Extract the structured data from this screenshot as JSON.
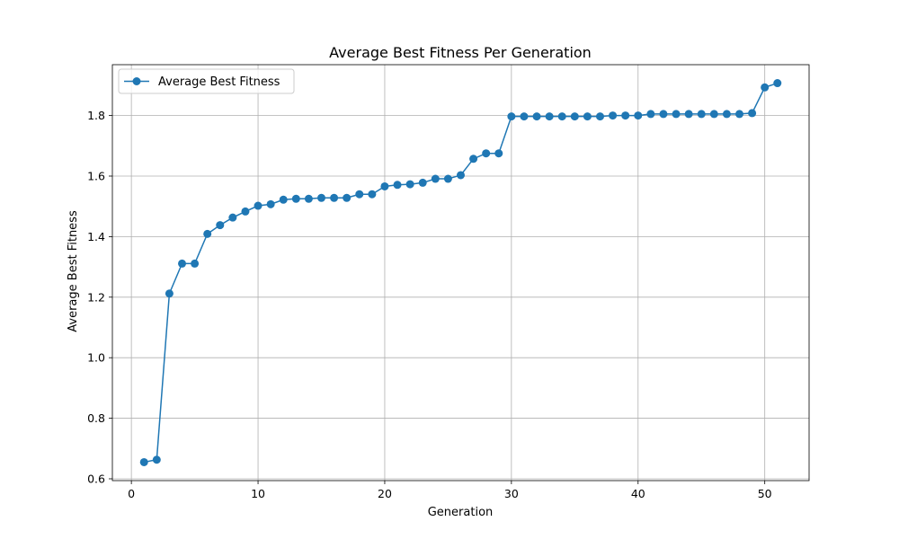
{
  "chart_data": {
    "type": "line",
    "title": "Average Best Fitness Per Generation",
    "xlabel": "Generation",
    "ylabel": "Average Best Fitness",
    "xlim": [
      -1.5,
      53.5
    ],
    "ylim": [
      0.594,
      1.968
    ],
    "xticks": [
      0,
      10,
      20,
      30,
      40,
      50
    ],
    "yticks": [
      0.6,
      0.8,
      1.0,
      1.2,
      1.4,
      1.6,
      1.8
    ],
    "ytick_labels": [
      "0.6",
      "0.8",
      "1.0",
      "1.2",
      "1.4",
      "1.6",
      "1.8"
    ],
    "grid": true,
    "legend_position": "upper-left",
    "color": "#1f77b4",
    "grid_color": "#b0b0b0",
    "series": [
      {
        "name": "Average Best Fitness",
        "marker": "circle",
        "x": [
          1,
          2,
          3,
          4,
          5,
          6,
          7,
          8,
          9,
          10,
          11,
          12,
          13,
          14,
          15,
          16,
          17,
          18,
          19,
          20,
          21,
          22,
          23,
          24,
          25,
          26,
          27,
          28,
          29,
          30,
          31,
          32,
          33,
          34,
          35,
          36,
          37,
          38,
          39,
          40,
          41,
          42,
          43,
          44,
          45,
          46,
          47,
          48,
          49,
          50,
          51
        ],
        "y": [
          0.655,
          0.663,
          1.212,
          1.311,
          1.311,
          1.409,
          1.438,
          1.463,
          1.483,
          1.502,
          1.507,
          1.522,
          1.525,
          1.525,
          1.528,
          1.528,
          1.528,
          1.54,
          1.54,
          1.566,
          1.571,
          1.573,
          1.578,
          1.591,
          1.591,
          1.603,
          1.657,
          1.675,
          1.675,
          1.797,
          1.797,
          1.797,
          1.797,
          1.797,
          1.797,
          1.797,
          1.797,
          1.8,
          1.8,
          1.8,
          1.805,
          1.805,
          1.805,
          1.805,
          1.805,
          1.805,
          1.805,
          1.805,
          1.808,
          1.893,
          1.907
        ]
      }
    ]
  }
}
